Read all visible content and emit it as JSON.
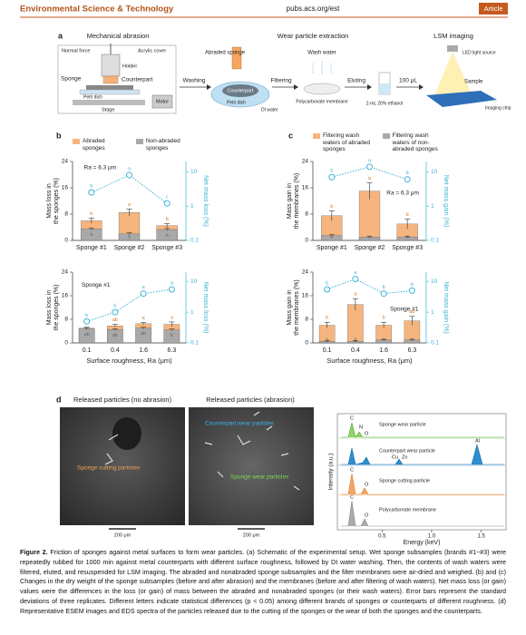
{
  "header": {
    "journal": "Environmental Science & Technology",
    "url": "pubs.acs.org/est",
    "tag": "Article"
  },
  "panel_a": {
    "label": "a",
    "titles": [
      "Mechanical abrasion",
      "Wear particle extraction",
      "LSM imaging"
    ],
    "labels": [
      "Normal force",
      "Acrylic cover",
      "Holder",
      "Sponge",
      "Counterpart",
      "Petri dish",
      "Stage",
      "Motor",
      "Abraded sponge",
      "Washing",
      "Counterpart",
      "Petri dish",
      "DI water",
      "Filtering",
      "Wash water",
      "Polycarbonate membrane",
      "Eluting",
      "2-mL 20% ethanol",
      "100 μL",
      "LED light source",
      "Sample",
      "Imaging chip"
    ]
  },
  "panel_labels": [
    "b",
    "c"
  ],
  "charts": [
    {
      "type": "bar",
      "ylabel": [
        "Mass loss in",
        "the sponges (%)"
      ],
      "y2label": "Net mass loss (%)",
      "annotation": "Ra = 6.3 μm",
      "categories": [
        "Sponge #1",
        "Sponge #2",
        "Sponge #3"
      ],
      "ylim": [
        0,
        24
      ],
      "yticks": [
        0,
        8,
        16,
        24
      ],
      "y2lim": [
        0.1,
        20
      ],
      "y2ticks": [
        0.1,
        1,
        10
      ],
      "y2scale": "log",
      "series": [
        {
          "name": "Abraded sponges",
          "color": "#f6b57f",
          "values": [
            6,
            8.5,
            4.5
          ],
          "errors": [
            0.8,
            1,
            0.6
          ],
          "letters": [
            "b",
            "a",
            "b"
          ]
        },
        {
          "name": "Non-abraded sponges",
          "color": "#a9a9a9",
          "values": [
            3.5,
            2,
            3.3
          ],
          "errors": [
            0.3,
            0.3,
            0.3
          ],
          "letters": [
            "a",
            "a",
            "a"
          ]
        }
      ],
      "line": {
        "axis": "y2",
        "color": "#3bb4d8",
        "values": [
          2.5,
          8,
          1.2
        ],
        "letters": [
          "b",
          "a",
          "c"
        ]
      }
    },
    {
      "type": "bar",
      "ylabel": [
        "Mass loss in",
        "the sponges (%)"
      ],
      "y2label": "Net mass loss (%)",
      "annotation": "Sponge #1",
      "categories": [
        "0.1",
        "0.4",
        "1.6",
        "6.3"
      ],
      "xlabel": "Surface roughness, Ra (μm)",
      "ylim": [
        0,
        24
      ],
      "yticks": [
        0,
        8,
        16,
        24
      ],
      "y2lim": [
        0.1,
        20
      ],
      "y2ticks": [
        0.1,
        1,
        10
      ],
      "y2scale": "log",
      "series": [
        {
          "color": "#f6b57f",
          "values": [
            5.0,
            5.8,
            6.5,
            6.3
          ],
          "errors": [
            0.3,
            0.5,
            0.4,
            0.8
          ],
          "letters": [
            "a",
            "ab",
            "a",
            "a"
          ]
        },
        {
          "color": "#a9a9a9",
          "values": [
            4.8,
            4.5,
            5.0,
            4.4
          ],
          "errors": [
            0.2,
            0.3,
            0.3,
            0.3
          ],
          "letters": [
            "ab",
            "ab",
            "ab",
            "b"
          ]
        }
      ],
      "line": {
        "axis": "y2",
        "color": "#3bb4d8",
        "values": [
          0.5,
          1,
          4,
          5.5
        ],
        "letters": [
          "b",
          "b",
          "a",
          "a"
        ]
      }
    },
    {
      "type": "bar",
      "ylabel": [
        "Mass gain in",
        "the membranes (%)"
      ],
      "y2label": "Net mass gain (%)",
      "annotation": "Ra = 6.3 μm",
      "categories": [
        "Sponge #1",
        "Sponge #2",
        "Sponge #3"
      ],
      "ylim": [
        0,
        24
      ],
      "yticks": [
        0,
        8,
        16,
        24
      ],
      "y2lim": [
        0.1,
        20
      ],
      "y2ticks": [
        0.1,
        1,
        10
      ],
      "y2scale": "log",
      "series": [
        {
          "name": "Filtering wash waters of abraded sponges",
          "color": "#f6b57f",
          "values": [
            7.5,
            15,
            5
          ],
          "errors": [
            1.5,
            2.5,
            1.5
          ],
          "letters": [
            "b",
            "a",
            "b"
          ]
        },
        {
          "name": "Filtering wash waters of non-abraded sponges",
          "color": "#a9a9a9",
          "values": [
            1.5,
            1,
            1
          ],
          "errors": [
            0.3,
            0.2,
            0.2
          ],
          "letters": [
            "a",
            "a",
            "a"
          ]
        }
      ],
      "line": {
        "axis": "y2",
        "color": "#3bb4d8",
        "values": [
          7,
          14,
          6
        ],
        "letters": [
          "b",
          "a",
          "b"
        ]
      }
    },
    {
      "type": "bar",
      "ylabel": [
        "Mass gain in",
        "the membranes (%)"
      ],
      "y2label": "Net mass gain (%)",
      "annotation": "Sponge #1",
      "categories": [
        "0.1",
        "0.4",
        "1.6",
        "6.3"
      ],
      "xlabel": "Surface roughness, Ra (μm)",
      "ylim": [
        0,
        24
      ],
      "yticks": [
        0,
        8,
        16,
        24
      ],
      "y2lim": [
        0.1,
        20
      ],
      "y2ticks": [
        0.1,
        1,
        10
      ],
      "y2scale": "log",
      "series": [
        {
          "color": "#f6b57f",
          "values": [
            6,
            13,
            6,
            7.5
          ],
          "errors": [
            1,
            2,
            1,
            1.5
          ],
          "letters": [
            "b",
            "a",
            "b",
            "ab"
          ]
        },
        {
          "color": "#a9a9a9",
          "values": [
            0.5,
            0.5,
            1,
            1
          ],
          "errors": [
            0.2,
            0.2,
            0.2,
            0.2
          ],
          "letters": [
            "a",
            "a",
            "a",
            "a"
          ]
        }
      ],
      "line": {
        "axis": "y2",
        "color": "#3bb4d8",
        "values": [
          5.5,
          12,
          4,
          5
        ],
        "letters": [
          "b",
          "a",
          "b",
          "b"
        ]
      }
    }
  ],
  "panel_d": {
    "label": "d",
    "image_titles": [
      "Released particles (no abrasion)",
      "Released particles (abrasion)"
    ],
    "annotations": [
      "Sponge cutting particles",
      "Counterpart wear particles",
      "Sponge wear particles"
    ],
    "scale_bars": [
      "200 μm",
      "200 μm"
    ],
    "spectra": {
      "ylabel": "Intensity (a.u.)",
      "xlabel": "Energy (keV)",
      "xticks": [
        {
          "value": 0.5,
          "label": "0.5"
        },
        {
          "value": 1.0,
          "label": "1.0"
        },
        {
          "value": 1.5,
          "label": "1.5"
        }
      ],
      "xlim": [
        0.05,
        1.75
      ],
      "traces": [
        "Sponge wear particle",
        "Counterpart wear particle",
        "Sponge cutting particle",
        "Polycarbonate membrane"
      ],
      "peaks": [
        "C",
        "N",
        "O",
        "Cu",
        "Zn",
        "Al",
        "C",
        "O",
        "C",
        "O"
      ]
    }
  },
  "caption": {
    "label": "Figure 2.",
    "text": "Friction of sponges against metal surfaces to form wear particles. (a) Schematic of the experimental setup. Wet sponge subsamples (brands #1−#3) were repeatedly rubbed for 1000 min against metal counterparts with different surface roughness, followed by DI water washing. Then, the contents of wash waters were filtered, eluted, and resuspended for LSM imaging. The abraded and nonabraded sponge subsamples and the filter membranes were air-dried and weighed. (b) and (c) Changes in the dry weight of the sponge subsamples (before and after abrasion) and the membranes (before and after filtering of wash waters). Net mass loss (or gain) values were the differences in the loss (or gain) of mass between the abraded and nonabraded sponges (or their wash waters). Error bars represent the standard deviations of three replicates. Different letters indicate statistical differences (p < 0.05) among different brands of sponges or counterparts of different roughness. (d) Representative ESEM images and EDS spectra of the particles released due to the cutting of the sponges or the wear of both the sponges and the counterparts."
  }
}
